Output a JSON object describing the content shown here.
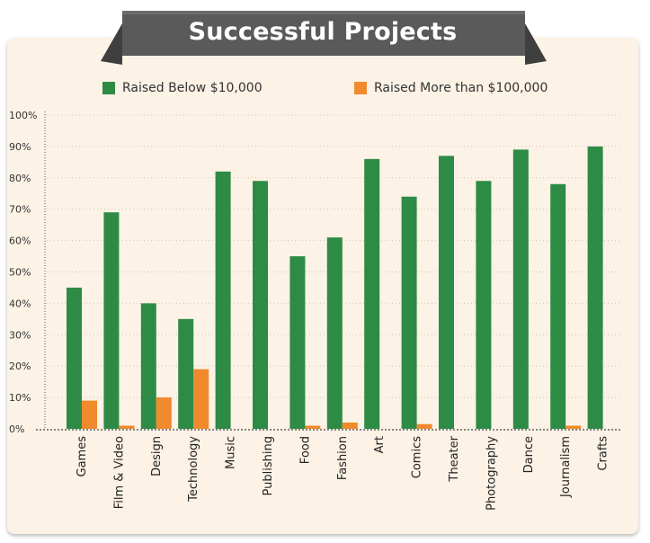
{
  "title": "Successful Projects",
  "colors": {
    "below": "#2e8b46",
    "above": "#f08a2c",
    "ribbon": "#5a5a5a",
    "panel": "#fcf2e5"
  },
  "legend": [
    {
      "label": "Raised Below $10,000",
      "color": "#2e8b46"
    },
    {
      "label": "Raised More than $100,000",
      "color": "#f08a2c"
    }
  ],
  "chart_data": {
    "type": "bar",
    "title": "Successful Projects",
    "categories": [
      "Games",
      "Film & Video",
      "Design",
      "Technology",
      "Music",
      "Publishing",
      "Food",
      "Fashion",
      "Art",
      "Comics",
      "Theater",
      "Photography",
      "Dance",
      "Journalism",
      "Crafts"
    ],
    "series": [
      {
        "name": "Raised Below $10,000",
        "values": [
          45,
          69,
          40,
          35,
          82,
          79,
          55,
          61,
          86,
          74,
          87,
          79,
          89,
          78,
          90
        ]
      },
      {
        "name": "Raised More than $100,000",
        "values": [
          9,
          1,
          10,
          19,
          0,
          0,
          1,
          2,
          0,
          1.5,
          0,
          0,
          0,
          1,
          0
        ]
      }
    ],
    "ylim": [
      0,
      100
    ],
    "yticks": [
      "0%",
      "10%",
      "20%",
      "30%",
      "40%",
      "50%",
      "60%",
      "70%",
      "80%",
      "90%",
      "100%"
    ],
    "grid": true,
    "legend_position": "top"
  }
}
